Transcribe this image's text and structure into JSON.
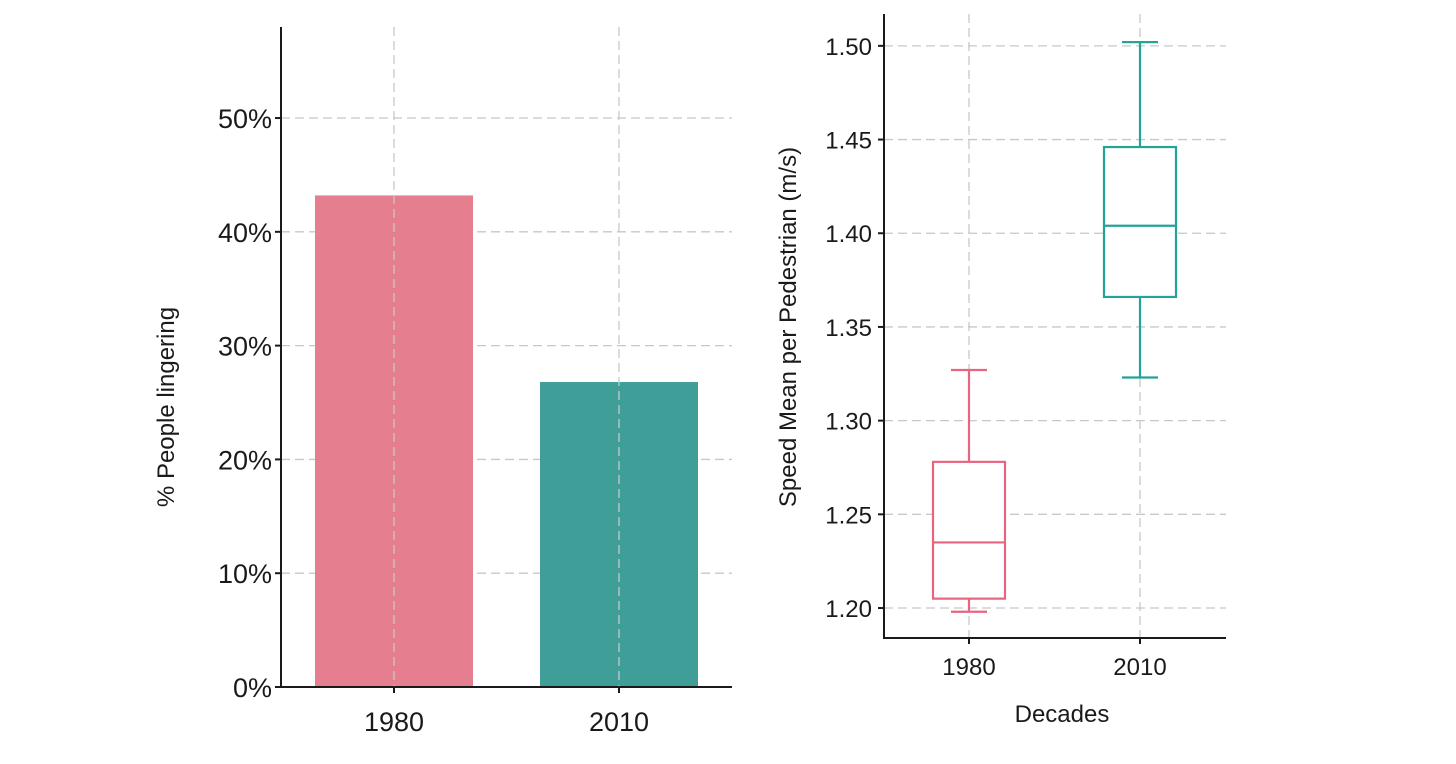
{
  "chart_data": [
    {
      "type": "bar",
      "categories": [
        "1980",
        "2010"
      ],
      "values": [
        43.2,
        26.8
      ],
      "ylabel": "% People lingering",
      "xlabel": "",
      "ylim": [
        0,
        58
      ],
      "yticks": [
        "0%",
        "10%",
        "20%",
        "30%",
        "40%",
        "50%"
      ],
      "ytick_values": [
        0,
        10,
        20,
        30,
        40,
        50
      ],
      "grid": true,
      "colors": [
        "#e57f90",
        "#3f9e98"
      ]
    },
    {
      "type": "box",
      "categories": [
        "1980",
        "2010"
      ],
      "boxes": [
        {
          "whisker_low": 1.198,
          "q1": 1.205,
          "median": 1.235,
          "q3": 1.278,
          "whisker_high": 1.327
        },
        {
          "whisker_low": 1.323,
          "q1": 1.366,
          "median": 1.404,
          "q3": 1.446,
          "whisker_high": 1.502
        }
      ],
      "xlabel": "Decades",
      "ylabel": "Speed Mean per Pedestrian (m/s)",
      "ylim": [
        1.184,
        1.517
      ],
      "yticks": [
        "1.20",
        "1.25",
        "1.30",
        "1.35",
        "1.40",
        "1.45",
        "1.50"
      ],
      "ytick_values": [
        1.2,
        1.25,
        1.3,
        1.35,
        1.4,
        1.45,
        1.5
      ],
      "grid": true,
      "colors": [
        "#e8657f",
        "#24a398"
      ]
    }
  ]
}
